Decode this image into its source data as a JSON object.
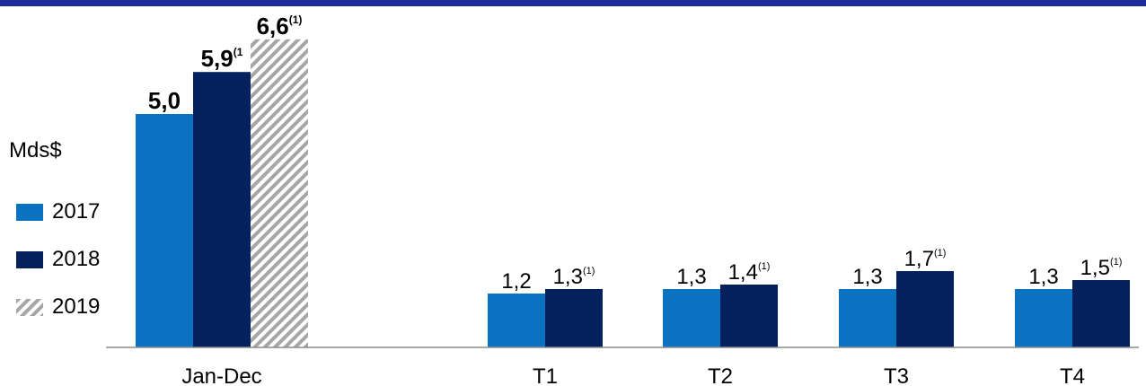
{
  "chart_data": {
    "type": "bar",
    "unit": "Mds$",
    "groups": [
      {
        "label": "Jan-Dec",
        "bars": [
          {
            "series": "2017",
            "value": 5.0,
            "label": "5,0",
            "sup": ""
          },
          {
            "series": "2018",
            "value": 5.9,
            "label": "5,9",
            "sup": "(1"
          },
          {
            "series": "2019",
            "value": 6.6,
            "label": "6,6",
            "sup": "(1)"
          }
        ]
      },
      {
        "label": "T1",
        "bars": [
          {
            "series": "2017",
            "value": 1.2,
            "label": "1,2",
            "sup": ""
          },
          {
            "series": "2018",
            "value": 1.3,
            "label": "1,3",
            "sup": "(1)"
          }
        ]
      },
      {
        "label": "T2",
        "bars": [
          {
            "series": "2017",
            "value": 1.3,
            "label": "1,3",
            "sup": ""
          },
          {
            "series": "2018",
            "value": 1.4,
            "label": "1,4",
            "sup": "(1)"
          }
        ]
      },
      {
        "label": "T3",
        "bars": [
          {
            "series": "2017",
            "value": 1.3,
            "label": "1,3",
            "sup": ""
          },
          {
            "series": "2018",
            "value": 1.7,
            "label": "1,7",
            "sup": "(1)"
          }
        ]
      },
      {
        "label": "T4",
        "bars": [
          {
            "series": "2017",
            "value": 1.3,
            "label": "1,3",
            "sup": ""
          },
          {
            "series": "2018",
            "value": 1.5,
            "label": "1,5",
            "sup": "(1)"
          }
        ]
      }
    ],
    "series": [
      {
        "name": "2017",
        "color": "#0b72c2",
        "pattern": "solid"
      },
      {
        "name": "2018",
        "color": "#05215d",
        "pattern": "solid"
      },
      {
        "name": "2019",
        "color": "#a6a6a6",
        "pattern": "hatched"
      }
    ],
    "legend_position": "left",
    "grid": false
  }
}
